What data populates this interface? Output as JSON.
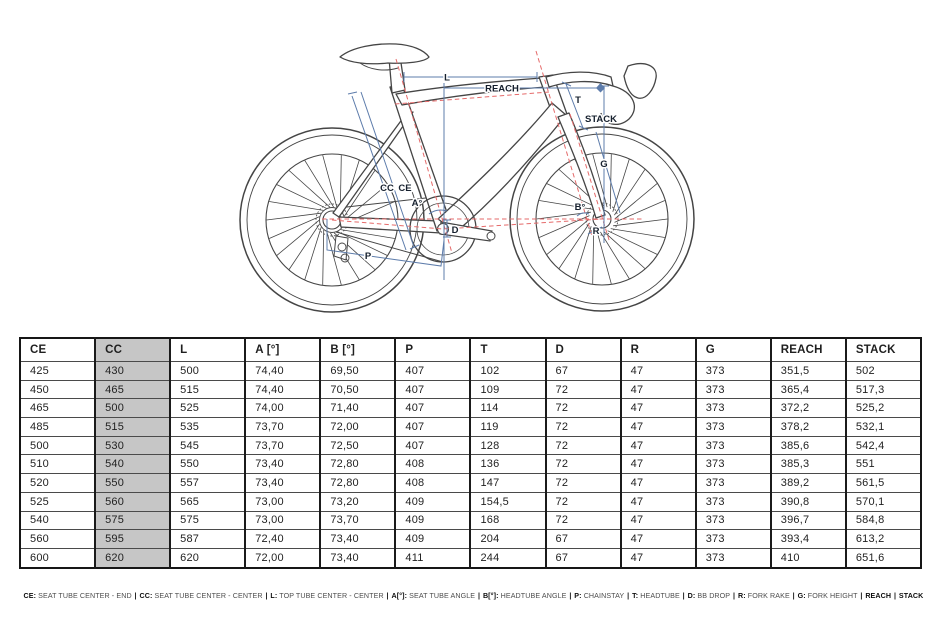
{
  "diagram": {
    "labels": {
      "l": "L",
      "reach": "REACH",
      "t": "T",
      "stack": "STACK",
      "g": "G",
      "cc": "CC",
      "ce": "CE",
      "a_angle": "A°",
      "b_angle": "B°",
      "d": "D",
      "p": "P",
      "r": "R"
    },
    "colors": {
      "measurement_line": "#5d7cab",
      "reference_dashed_line": "#e56a6a",
      "drawing_line": "#454545",
      "label_text": "#16202e"
    }
  },
  "table": {
    "columns": [
      "CE",
      "CC",
      "L",
      "A [°]",
      "B [°]",
      "P",
      "T",
      "D",
      "R",
      "G",
      "REACH",
      "STACK"
    ],
    "highlight_column": "CC",
    "highlight_color": "#c6c6c6",
    "rows": [
      [
        "425",
        "430",
        "500",
        "74,40",
        "69,50",
        "407",
        "102",
        "67",
        "47",
        "373",
        "351,5",
        "502"
      ],
      [
        "450",
        "465",
        "515",
        "74,40",
        "70,50",
        "407",
        "109",
        "72",
        "47",
        "373",
        "365,4",
        "517,3"
      ],
      [
        "465",
        "500",
        "525",
        "74,00",
        "71,40",
        "407",
        "114",
        "72",
        "47",
        "373",
        "372,2",
        "525,2"
      ],
      [
        "485",
        "515",
        "535",
        "73,70",
        "72,00",
        "407",
        "119",
        "72",
        "47",
        "373",
        "378,2",
        "532,1"
      ],
      [
        "500",
        "530",
        "545",
        "73,70",
        "72,50",
        "407",
        "128",
        "72",
        "47",
        "373",
        "385,6",
        "542,4"
      ],
      [
        "510",
        "540",
        "550",
        "73,40",
        "72,80",
        "408",
        "136",
        "72",
        "47",
        "373",
        "385,3",
        "551"
      ],
      [
        "520",
        "550",
        "557",
        "73,40",
        "72,80",
        "408",
        "147",
        "72",
        "47",
        "373",
        "389,2",
        "561,5"
      ],
      [
        "525",
        "560",
        "565",
        "73,00",
        "73,20",
        "409",
        "154,5",
        "72",
        "47",
        "373",
        "390,8",
        "570,1"
      ],
      [
        "540",
        "575",
        "575",
        "73,00",
        "73,70",
        "409",
        "168",
        "72",
        "47",
        "373",
        "396,7",
        "584,8"
      ],
      [
        "560",
        "595",
        "587",
        "72,40",
        "73,40",
        "409",
        "204",
        "67",
        "47",
        "373",
        "393,4",
        "613,2"
      ],
      [
        "600",
        "620",
        "620",
        "72,00",
        "73,40",
        "411",
        "244",
        "67",
        "47",
        "373",
        "410",
        "651,6"
      ]
    ]
  },
  "legend": {
    "separator": "|",
    "items": [
      {
        "key": "CE:",
        "label": "SEAT TUBE CENTER - END"
      },
      {
        "key": "CC:",
        "label": "SEAT TUBE CENTER - CENTER"
      },
      {
        "key": "L:",
        "label": "TOP TUBE CENTER - CENTER"
      },
      {
        "key": "A[°]:",
        "label": "SEAT TUBE ANGLE"
      },
      {
        "key": "B[°]:",
        "label": "HEADTUBE ANGLE"
      },
      {
        "key": "P:",
        "label": "CHAINSTAY"
      },
      {
        "key": "T:",
        "label": "HEADTUBE"
      },
      {
        "key": "D:",
        "label": "BB DROP"
      },
      {
        "key": "R:",
        "label": "FORK RAKE"
      },
      {
        "key": "G:",
        "label": "FORK HEIGHT"
      },
      {
        "key": "REACH",
        "label": ""
      },
      {
        "key": "STACK",
        "label": ""
      }
    ]
  }
}
